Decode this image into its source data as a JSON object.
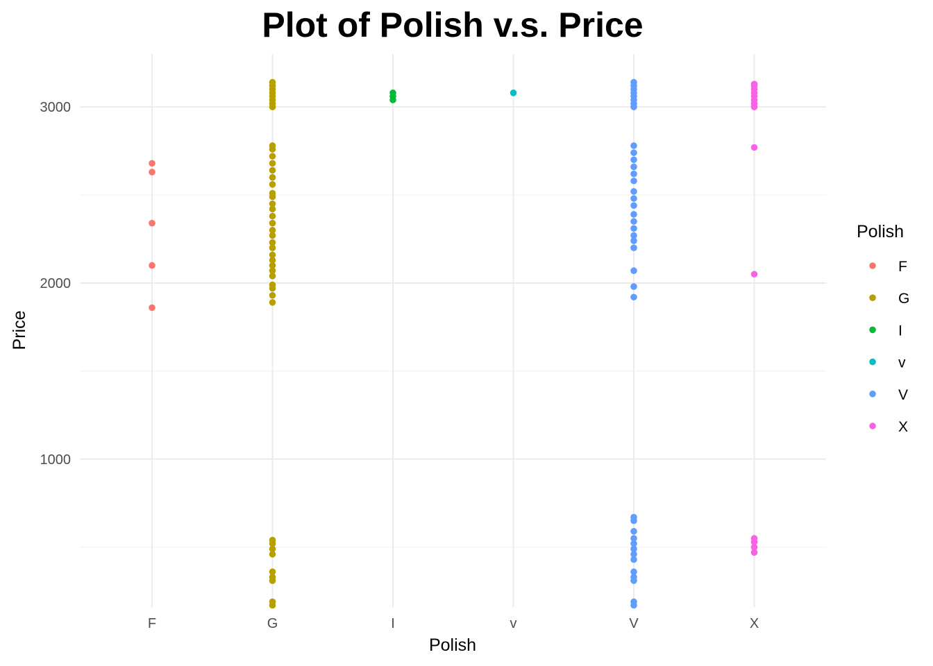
{
  "chart_data": {
    "type": "scatter",
    "title": "Plot of Polish v.s. Price",
    "xlabel": "Polish",
    "ylabel": "Price",
    "categories": [
      "F",
      "G",
      "I",
      "v",
      "V",
      "X"
    ],
    "ylim": [
      160,
      3300
    ],
    "y_ticks": [
      1000,
      2000,
      3000
    ],
    "y_tick_labels": [
      "1000",
      "2000",
      "3000"
    ],
    "y_minor_ticks": [
      500,
      1500,
      2500
    ],
    "grid": true,
    "legend": {
      "title": "Polish",
      "placement": "right",
      "entries": [
        "F",
        "G",
        "I",
        "v",
        "V",
        "X"
      ]
    },
    "series": [
      {
        "name": "F",
        "color": "#F8766D",
        "values": [
          1860,
          2100,
          2340,
          2630,
          2680
        ]
      },
      {
        "name": "G",
        "color": "#B79F00",
        "values": [
          170,
          190,
          310,
          330,
          360,
          460,
          490,
          520,
          540,
          1890,
          1930,
          1970,
          1990,
          2040,
          2070,
          2100,
          2130,
          2160,
          2200,
          2230,
          2270,
          2300,
          2340,
          2380,
          2420,
          2450,
          2490,
          2510,
          2560,
          2600,
          2640,
          2680,
          2720,
          2760,
          2780,
          3000,
          3020,
          3040,
          3060,
          3080,
          3100,
          3120,
          3140
        ]
      },
      {
        "name": "I",
        "color": "#00BA38",
        "values": [
          3040,
          3060,
          3080
        ]
      },
      {
        "name": "v",
        "color": "#00BFC4",
        "values": [
          3080
        ]
      },
      {
        "name": "V",
        "color": "#619CFF",
        "values": [
          170,
          190,
          310,
          330,
          360,
          430,
          460,
          490,
          520,
          550,
          590,
          650,
          670,
          1920,
          1980,
          2070,
          2200,
          2240,
          2270,
          2310,
          2350,
          2390,
          2440,
          2480,
          2520,
          2580,
          2620,
          2660,
          2700,
          2740,
          2780,
          3000,
          3020,
          3040,
          3060,
          3080,
          3100,
          3120,
          3140
        ]
      },
      {
        "name": "X",
        "color": "#F564E3",
        "values": [
          470,
          500,
          530,
          550,
          2050,
          2770,
          3000,
          3020,
          3040,
          3060,
          3080,
          3100,
          3120,
          3130
        ]
      }
    ]
  }
}
